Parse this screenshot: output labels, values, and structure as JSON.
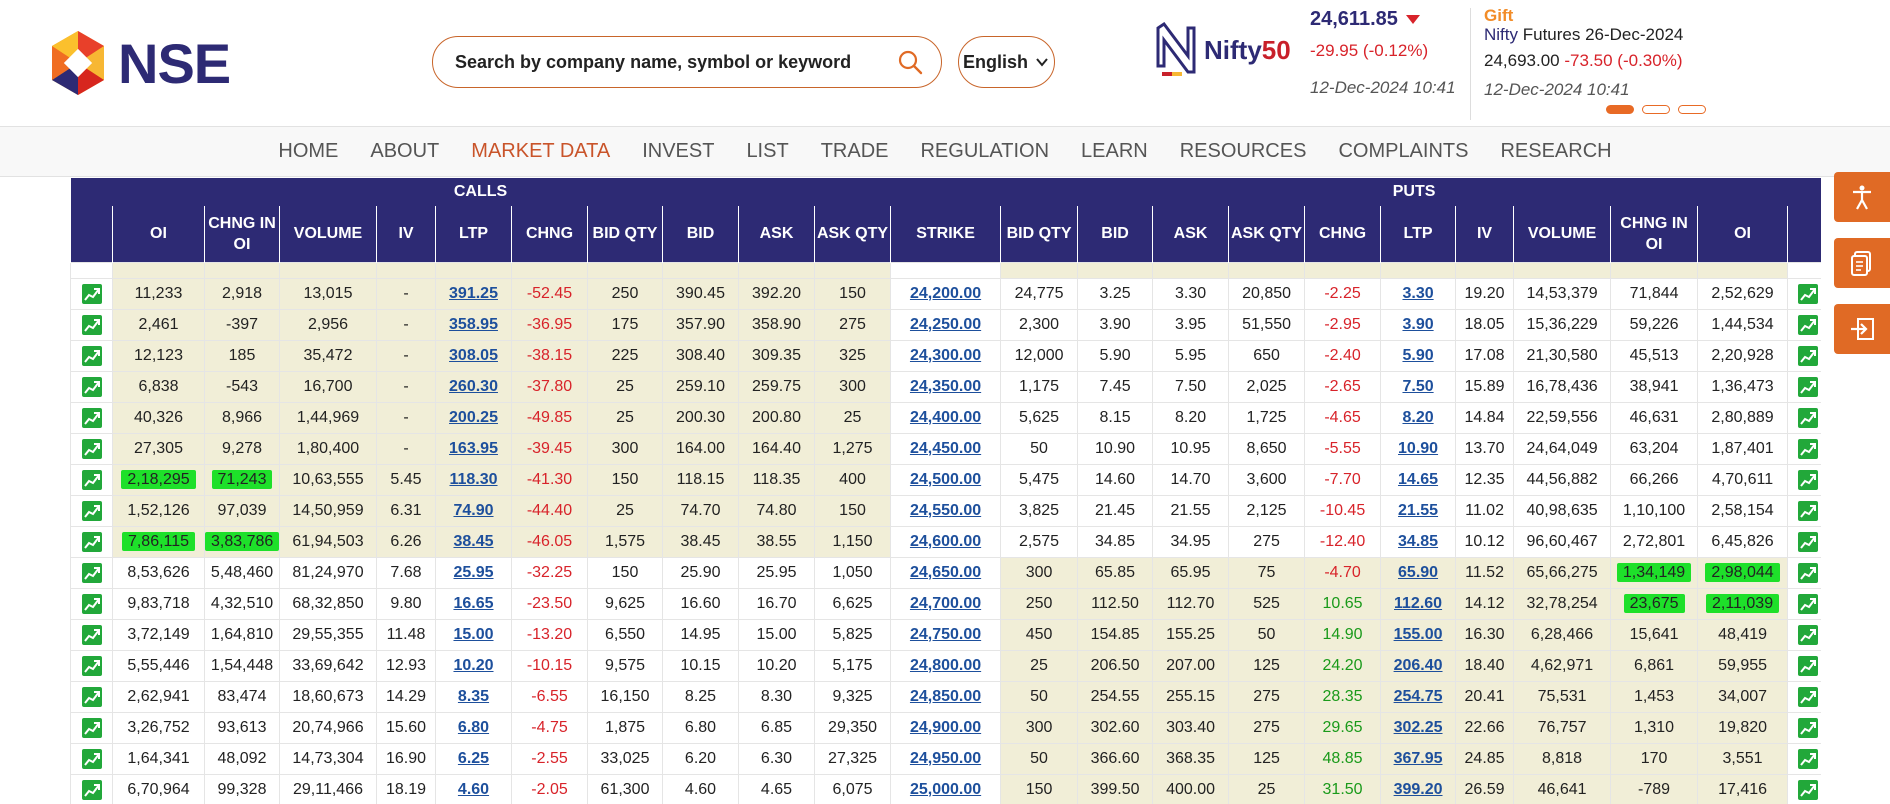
{
  "header": {
    "logo_text": "NSE",
    "search_placeholder": "Search by company name, symbol or keyword",
    "language": "English",
    "index_logo_text": "Nifty",
    "index_logo_fifty": "50",
    "index_price": "24,611.85",
    "index_change": "-29.95 (-0.12%)",
    "index_time": "12-Dec-2024 10:41",
    "gift_tag": "Gift",
    "gift_nifty": "Nifty",
    "gift_desc": "Futures 26-Dec-2024",
    "gift_price": "24,693.00",
    "gift_change": "-73.50 (-0.30%)",
    "gift_time": "12-Dec-2024 10:41"
  },
  "nav": [
    "HOME",
    "ABOUT",
    "MARKET DATA",
    "INVEST",
    "LIST",
    "TRADE",
    "REGULATION",
    "LEARN",
    "RESOURCES",
    "COMPLAINTS",
    "RESEARCH"
  ],
  "nav_active": "MARKET DATA",
  "colors": {
    "brand": "#2d2a74",
    "accent": "#e06a25",
    "itm": "#f1eed7",
    "highlight": "#1ee02a",
    "negative": "#d8232a",
    "positive": "#1a9a1a"
  },
  "table": {
    "group_calls": "CALLS",
    "group_puts": "PUTS",
    "headers": [
      "OI",
      "CHNG IN OI",
      "VOLUME",
      "IV",
      "LTP",
      "CHNG",
      "BID QTY",
      "BID",
      "ASK",
      "ASK QTY",
      "STRIKE",
      "BID QTY",
      "BID",
      "ASK",
      "ASK QTY",
      "CHNG",
      "LTP",
      "IV",
      "VOLUME",
      "CHNG IN OI",
      "OI"
    ],
    "rows": [
      {
        "c_oi": "11,233",
        "c_chng_oi": "2,918",
        "c_vol": "13,015",
        "c_iv": "-",
        "c_ltp": "391.25",
        "c_chng": "-52.45",
        "c_bidq": "250",
        "c_bid": "390.45",
        "c_ask": "392.20",
        "c_askq": "150",
        "strike": "24,200.00",
        "p_bidq": "24,775",
        "p_bid": "3.25",
        "p_ask": "3.30",
        "p_askq": "20,850",
        "p_chng": "-2.25",
        "p_ltp": "3.30",
        "p_iv": "19.20",
        "p_vol": "14,53,379",
        "p_chng_oi": "71,844",
        "p_oi": "2,52,629"
      },
      {
        "c_oi": "2,461",
        "c_chng_oi": "-397",
        "c_vol": "2,956",
        "c_iv": "-",
        "c_ltp": "358.95",
        "c_chng": "-36.95",
        "c_bidq": "175",
        "c_bid": "357.90",
        "c_ask": "358.90",
        "c_askq": "275",
        "strike": "24,250.00",
        "p_bidq": "2,300",
        "p_bid": "3.90",
        "p_ask": "3.95",
        "p_askq": "51,550",
        "p_chng": "-2.95",
        "p_ltp": "3.90",
        "p_iv": "18.05",
        "p_vol": "15,36,229",
        "p_chng_oi": "59,226",
        "p_oi": "1,44,534"
      },
      {
        "c_oi": "12,123",
        "c_chng_oi": "185",
        "c_vol": "35,472",
        "c_iv": "-",
        "c_ltp": "308.05",
        "c_chng": "-38.15",
        "c_bidq": "225",
        "c_bid": "308.40",
        "c_ask": "309.35",
        "c_askq": "325",
        "strike": "24,300.00",
        "p_bidq": "12,000",
        "p_bid": "5.90",
        "p_ask": "5.95",
        "p_askq": "650",
        "p_chng": "-2.40",
        "p_ltp": "5.90",
        "p_iv": "17.08",
        "p_vol": "21,30,580",
        "p_chng_oi": "45,513",
        "p_oi": "2,20,928"
      },
      {
        "c_oi": "6,838",
        "c_chng_oi": "-543",
        "c_vol": "16,700",
        "c_iv": "-",
        "c_ltp": "260.30",
        "c_chng": "-37.80",
        "c_bidq": "25",
        "c_bid": "259.10",
        "c_ask": "259.75",
        "c_askq": "300",
        "strike": "24,350.00",
        "p_bidq": "1,175",
        "p_bid": "7.45",
        "p_ask": "7.50",
        "p_askq": "2,025",
        "p_chng": "-2.65",
        "p_ltp": "7.50",
        "p_iv": "15.89",
        "p_vol": "16,78,436",
        "p_chng_oi": "38,941",
        "p_oi": "1,36,473"
      },
      {
        "c_oi": "40,326",
        "c_chng_oi": "8,966",
        "c_vol": "1,44,969",
        "c_iv": "-",
        "c_ltp": "200.25",
        "c_chng": "-49.85",
        "c_bidq": "25",
        "c_bid": "200.30",
        "c_ask": "200.80",
        "c_askq": "25",
        "strike": "24,400.00",
        "p_bidq": "5,625",
        "p_bid": "8.15",
        "p_ask": "8.20",
        "p_askq": "1,725",
        "p_chng": "-4.65",
        "p_ltp": "8.20",
        "p_iv": "14.84",
        "p_vol": "22,59,556",
        "p_chng_oi": "46,631",
        "p_oi": "2,80,889"
      },
      {
        "c_oi": "27,305",
        "c_chng_oi": "9,278",
        "c_vol": "1,80,400",
        "c_iv": "-",
        "c_ltp": "163.95",
        "c_chng": "-39.45",
        "c_bidq": "300",
        "c_bid": "164.00",
        "c_ask": "164.40",
        "c_askq": "1,275",
        "strike": "24,450.00",
        "p_bidq": "50",
        "p_bid": "10.90",
        "p_ask": "10.95",
        "p_askq": "8,650",
        "p_chng": "-5.55",
        "p_ltp": "10.90",
        "p_iv": "13.70",
        "p_vol": "24,64,049",
        "p_chng_oi": "63,204",
        "p_oi": "1,87,401"
      },
      {
        "c_oi": "2,18,295",
        "c_chng_oi": "71,243",
        "c_vol": "10,63,555",
        "c_iv": "5.45",
        "c_ltp": "118.30",
        "c_chng": "-41.30",
        "c_bidq": "150",
        "c_bid": "118.15",
        "c_ask": "118.35",
        "c_askq": "400",
        "strike": "24,500.00",
        "p_bidq": "5,475",
        "p_bid": "14.60",
        "p_ask": "14.70",
        "p_askq": "3,600",
        "p_chng": "-7.70",
        "p_ltp": "14.65",
        "p_iv": "12.35",
        "p_vol": "44,56,882",
        "p_chng_oi": "66,266",
        "p_oi": "4,70,611",
        "hl_c": true
      },
      {
        "c_oi": "1,52,126",
        "c_chng_oi": "97,039",
        "c_vol": "14,50,959",
        "c_iv": "6.31",
        "c_ltp": "74.90",
        "c_chng": "-44.40",
        "c_bidq": "25",
        "c_bid": "74.70",
        "c_ask": "74.80",
        "c_askq": "150",
        "strike": "24,550.00",
        "p_bidq": "3,825",
        "p_bid": "21.45",
        "p_ask": "21.55",
        "p_askq": "2,125",
        "p_chng": "-10.45",
        "p_ltp": "21.55",
        "p_iv": "11.02",
        "p_vol": "40,98,635",
        "p_chng_oi": "1,10,100",
        "p_oi": "2,58,154"
      },
      {
        "c_oi": "7,86,115",
        "c_chng_oi": "3,83,786",
        "c_vol": "61,94,503",
        "c_iv": "6.26",
        "c_ltp": "38.45",
        "c_chng": "-46.05",
        "c_bidq": "1,575",
        "c_bid": "38.45",
        "c_ask": "38.55",
        "c_askq": "1,150",
        "strike": "24,600.00",
        "p_bidq": "2,575",
        "p_bid": "34.85",
        "p_ask": "34.95",
        "p_askq": "275",
        "p_chng": "-12.40",
        "p_ltp": "34.85",
        "p_iv": "10.12",
        "p_vol": "96,60,467",
        "p_chng_oi": "2,72,801",
        "p_oi": "6,45,826",
        "hl_c": true
      },
      {
        "c_oi": "8,53,626",
        "c_chng_oi": "5,48,460",
        "c_vol": "81,24,970",
        "c_iv": "7.68",
        "c_ltp": "25.95",
        "c_chng": "-32.25",
        "c_bidq": "150",
        "c_bid": "25.90",
        "c_ask": "25.95",
        "c_askq": "1,050",
        "strike": "24,650.00",
        "p_bidq": "300",
        "p_bid": "65.85",
        "p_ask": "65.95",
        "p_askq": "75",
        "p_chng": "-4.70",
        "p_ltp": "65.90",
        "p_iv": "11.52",
        "p_vol": "65,66,275",
        "p_chng_oi": "1,34,149",
        "p_oi": "2,98,044",
        "hl_p": true
      },
      {
        "c_oi": "9,83,718",
        "c_chng_oi": "4,32,510",
        "c_vol": "68,32,850",
        "c_iv": "9.80",
        "c_ltp": "16.65",
        "c_chng": "-23.50",
        "c_bidq": "9,625",
        "c_bid": "16.60",
        "c_ask": "16.70",
        "c_askq": "6,625",
        "strike": "24,700.00",
        "p_bidq": "250",
        "p_bid": "112.50",
        "p_ask": "112.70",
        "p_askq": "525",
        "p_chng": "10.65",
        "p_ltp": "112.60",
        "p_iv": "14.12",
        "p_vol": "32,78,254",
        "p_chng_oi": "23,675",
        "p_oi": "2,11,039",
        "hl_p": true
      },
      {
        "c_oi": "3,72,149",
        "c_chng_oi": "1,64,810",
        "c_vol": "29,55,355",
        "c_iv": "11.48",
        "c_ltp": "15.00",
        "c_chng": "-13.20",
        "c_bidq": "6,550",
        "c_bid": "14.95",
        "c_ask": "15.00",
        "c_askq": "5,825",
        "strike": "24,750.00",
        "p_bidq": "450",
        "p_bid": "154.85",
        "p_ask": "155.25",
        "p_askq": "50",
        "p_chng": "14.90",
        "p_ltp": "155.00",
        "p_iv": "16.30",
        "p_vol": "6,28,466",
        "p_chng_oi": "15,641",
        "p_oi": "48,419"
      },
      {
        "c_oi": "5,55,446",
        "c_chng_oi": "1,54,448",
        "c_vol": "33,69,642",
        "c_iv": "12.93",
        "c_ltp": "10.20",
        "c_chng": "-10.15",
        "c_bidq": "9,575",
        "c_bid": "10.15",
        "c_ask": "10.20",
        "c_askq": "5,175",
        "strike": "24,800.00",
        "p_bidq": "25",
        "p_bid": "206.50",
        "p_ask": "207.00",
        "p_askq": "125",
        "p_chng": "24.20",
        "p_ltp": "206.40",
        "p_iv": "18.40",
        "p_vol": "4,62,971",
        "p_chng_oi": "6,861",
        "p_oi": "59,955"
      },
      {
        "c_oi": "2,62,941",
        "c_chng_oi": "83,474",
        "c_vol": "18,60,673",
        "c_iv": "14.29",
        "c_ltp": "8.35",
        "c_chng": "-6.55",
        "c_bidq": "16,150",
        "c_bid": "8.25",
        "c_ask": "8.30",
        "c_askq": "9,325",
        "strike": "24,850.00",
        "p_bidq": "50",
        "p_bid": "254.55",
        "p_ask": "255.15",
        "p_askq": "275",
        "p_chng": "28.35",
        "p_ltp": "254.75",
        "p_iv": "20.41",
        "p_vol": "75,531",
        "p_chng_oi": "1,453",
        "p_oi": "34,007"
      },
      {
        "c_oi": "3,26,752",
        "c_chng_oi": "93,613",
        "c_vol": "20,74,966",
        "c_iv": "15.60",
        "c_ltp": "6.80",
        "c_chng": "-4.75",
        "c_bidq": "1,875",
        "c_bid": "6.80",
        "c_ask": "6.85",
        "c_askq": "29,350",
        "strike": "24,900.00",
        "p_bidq": "300",
        "p_bid": "302.60",
        "p_ask": "303.40",
        "p_askq": "275",
        "p_chng": "29.65",
        "p_ltp": "302.25",
        "p_iv": "22.66",
        "p_vol": "76,757",
        "p_chng_oi": "1,310",
        "p_oi": "19,820"
      },
      {
        "c_oi": "1,64,341",
        "c_chng_oi": "48,092",
        "c_vol": "14,73,304",
        "c_iv": "16.90",
        "c_ltp": "6.25",
        "c_chng": "-2.55",
        "c_bidq": "33,025",
        "c_bid": "6.20",
        "c_ask": "6.30",
        "c_askq": "27,325",
        "strike": "24,950.00",
        "p_bidq": "50",
        "p_bid": "366.60",
        "p_ask": "368.35",
        "p_askq": "125",
        "p_chng": "48.85",
        "p_ltp": "367.95",
        "p_iv": "24.85",
        "p_vol": "8,818",
        "p_chng_oi": "170",
        "p_oi": "3,551"
      },
      {
        "c_oi": "6,70,964",
        "c_chng_oi": "99,328",
        "c_vol": "29,11,466",
        "c_iv": "18.19",
        "c_ltp": "4.60",
        "c_chng": "-2.05",
        "c_bidq": "61,300",
        "c_bid": "4.60",
        "c_ask": "4.65",
        "c_askq": "6,075",
        "strike": "25,000.00",
        "p_bidq": "150",
        "p_bid": "399.50",
        "p_ask": "400.00",
        "p_askq": "25",
        "p_chng": "31.50",
        "p_ltp": "399.20",
        "p_iv": "26.59",
        "p_vol": "46,641",
        "p_chng_oi": "-789",
        "p_oi": "17,416"
      }
    ],
    "atm_split_index": 9
  }
}
